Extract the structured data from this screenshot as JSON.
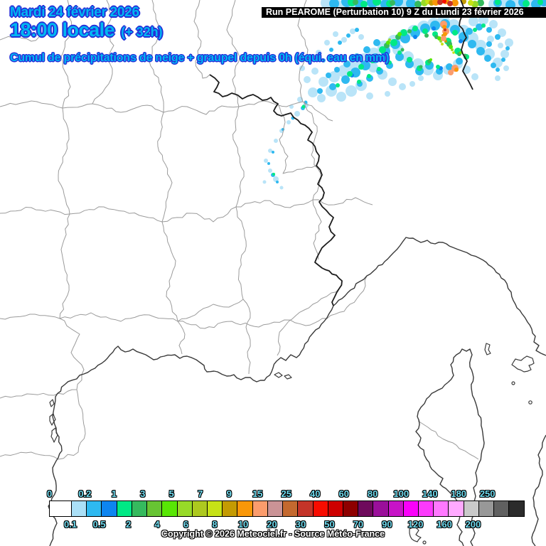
{
  "header": {
    "date": "Mardi 24 février 2026",
    "time": "18:00 locale",
    "offset": "(+ 32h)",
    "subtitle": "Cumul de précipitations de neige + graupel depuis 0h (équi. eau en mm)",
    "run": "Run PEAROME (Perturbation 10) 9 Z du Lundi 23 février 2026"
  },
  "footer": {
    "copyright": "Copyright © 2026 Meteociel.fr - Source Météo-France"
  },
  "colors": {
    "title_fill": "#00B6F2",
    "title_outline": "#2430D8",
    "tick_fill": "#70DCF0",
    "banner_bg": "#000000",
    "banner_text": "#FFFFFF",
    "dept_line": "#9B9B9B",
    "coast_line": "#3A3A3A",
    "border_line": "#1C1C1C"
  },
  "legend": {
    "ticks": [
      {
        "label": "0",
        "side": "top"
      },
      {
        "label": "0.1",
        "side": "bottom"
      },
      {
        "label": "0.2",
        "side": "top"
      },
      {
        "label": "0.5",
        "side": "bottom"
      },
      {
        "label": "1",
        "side": "top"
      },
      {
        "label": "2",
        "side": "bottom"
      },
      {
        "label": "3",
        "side": "top"
      },
      {
        "label": "4",
        "side": "bottom"
      },
      {
        "label": "5",
        "side": "top"
      },
      {
        "label": "6",
        "side": "bottom"
      },
      {
        "label": "7",
        "side": "top"
      },
      {
        "label": "8",
        "side": "bottom"
      },
      {
        "label": "9",
        "side": "top"
      },
      {
        "label": "10",
        "side": "bottom"
      },
      {
        "label": "15",
        "side": "top"
      },
      {
        "label": "20",
        "side": "bottom"
      },
      {
        "label": "25",
        "side": "top"
      },
      {
        "label": "30",
        "side": "bottom"
      },
      {
        "label": "40",
        "side": "top"
      },
      {
        "label": "50",
        "side": "bottom"
      },
      {
        "label": "60",
        "side": "top"
      },
      {
        "label": "70",
        "side": "bottom"
      },
      {
        "label": "80",
        "side": "top"
      },
      {
        "label": "90",
        "side": "bottom"
      },
      {
        "label": "100",
        "side": "top"
      },
      {
        "label": "120",
        "side": "bottom"
      },
      {
        "label": "140",
        "side": "top"
      },
      {
        "label": "160",
        "side": "bottom"
      },
      {
        "label": "180",
        "side": "top"
      },
      {
        "label": "200",
        "side": "bottom"
      },
      {
        "label": "250",
        "side": "top"
      }
    ],
    "box_colors": [
      "#FFFFFF",
      "#ABE0F7",
      "#2EB9F0",
      "#0D85F0",
      "#00E985",
      "#35BA5E",
      "#67C433",
      "#58E705",
      "#97DA28",
      "#ADC91F",
      "#C6E216",
      "#C49B02",
      "#F99708",
      "#FB9C6C",
      "#CA9396",
      "#C4692F",
      "#C43429",
      "#F80C00",
      "#CE0000",
      "#8E0000",
      "#6E0A5C",
      "#9A0F9A",
      "#C714C7",
      "#FA00FA",
      "#FC3AFC",
      "#FF78FF",
      "#FFA9FF",
      "#C9C9C9",
      "#989898",
      "#606060",
      "#2B2B2B"
    ]
  }
}
